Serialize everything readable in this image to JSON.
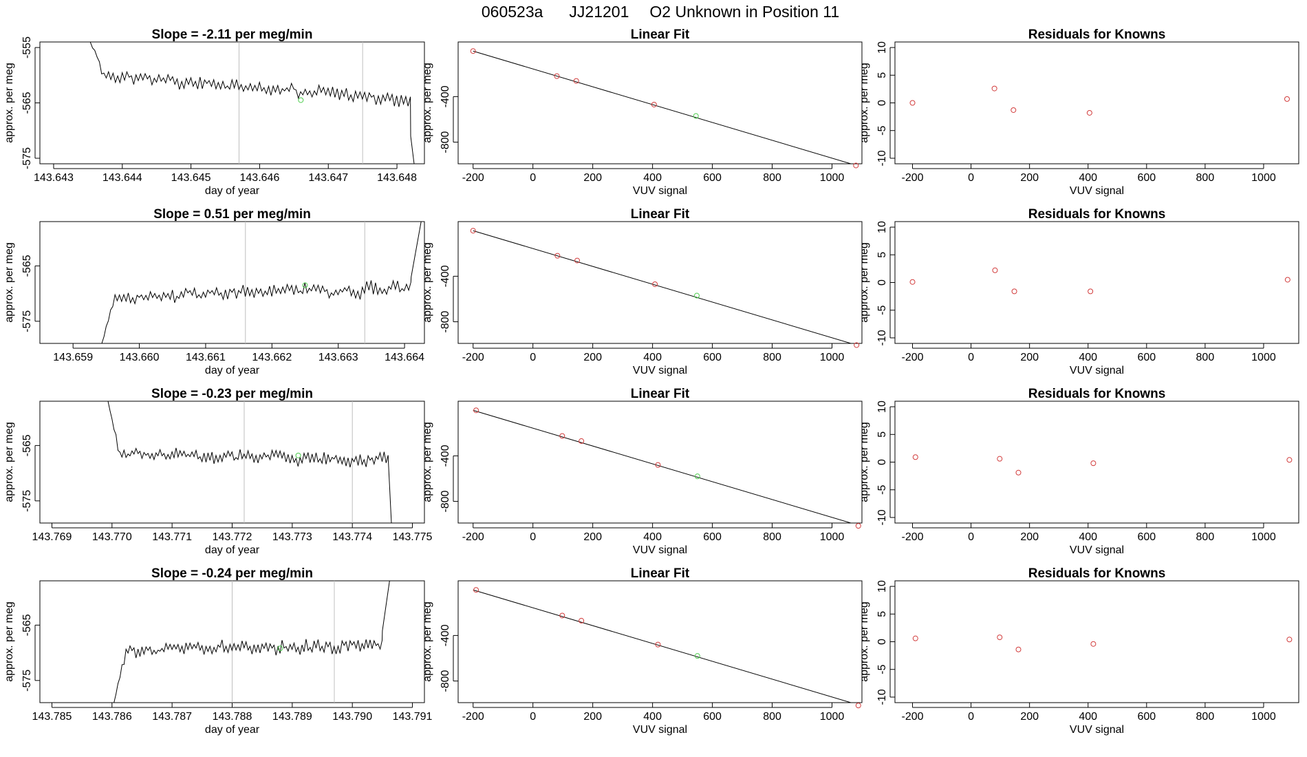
{
  "figure": {
    "run_id": "060523a",
    "tank_id": "JJ21201",
    "description": "O2 Unknown in Position  11"
  },
  "chart_data": [
    {
      "row": 1,
      "timeseries": {
        "type": "line",
        "title": "Slope =  -2.11  per meg/min",
        "xlabel": "day of year",
        "ylabel": "approx. per meg",
        "xlim": [
          143.6428,
          143.6484
        ],
        "ylim": [
          -576,
          -554
        ],
        "xticks": [
          "143.643",
          "143.644",
          "143.645",
          "143.646",
          "143.647",
          "143.648"
        ],
        "yticks": [
          "-555",
          "-565",
          "-575"
        ],
        "vlines": [
          143.6457,
          143.6475
        ],
        "start": [
          143.6435,
          -554
        ],
        "step": 3.33e-05,
        "end": 143.6482,
        "y0": -559.5,
        "slope_per_day": -1.1,
        "noise_amp": 1.8,
        "marker": [
          143.6466,
          -564.5
        ],
        "edge_tail": [
          [
            143.6482,
            -571
          ],
          [
            143.64825,
            -576
          ]
        ],
        "seed": 11
      },
      "fit": {
        "type": "scatter",
        "title": "Linear Fit",
        "xlabel": "VUV signal",
        "ylabel": "approx. per meg",
        "xlim": [
          -250,
          1100
        ],
        "ylim": [
          -990,
          80
        ],
        "xticks": [
          -200,
          0,
          200,
          400,
          600,
          800,
          1000
        ],
        "yticks": [
          -400,
          -800
        ],
        "line": [
          [
            -200,
            0
          ],
          [
            1095,
            -1015
          ]
        ],
        "knowns": [
          [
            -200,
            0
          ],
          [
            80,
            -220
          ],
          [
            145,
            -262
          ],
          [
            405,
            -470
          ],
          [
            1080,
            -1005
          ]
        ],
        "unknown": [
          [
            545,
            -570
          ]
        ]
      },
      "residuals": {
        "type": "scatter",
        "title": "Residuals for Knowns",
        "xlabel": "VUV signal",
        "ylabel": "approx. per meg",
        "xlim": [
          -260,
          1120
        ],
        "ylim": [
          -11,
          11
        ],
        "xticks": [
          -200,
          0,
          200,
          400,
          600,
          800,
          1000
        ],
        "yticks": [
          10,
          5,
          0,
          -5,
          -10
        ],
        "points": [
          [
            -200,
            0.0
          ],
          [
            80,
            2.6
          ],
          [
            145,
            -1.3
          ],
          [
            405,
            -1.8
          ],
          [
            1080,
            0.7
          ]
        ]
      }
    },
    {
      "row": 2,
      "timeseries": {
        "type": "line",
        "title": "Slope =  0.51  per meg/min",
        "xlabel": "day of year",
        "ylabel": "approx. per meg",
        "xlim": [
          143.6585,
          143.6643
        ],
        "ylim": [
          -579,
          -557
        ],
        "xticks": [
          "143.659",
          "143.660",
          "143.661",
          "143.662",
          "143.663",
          "143.664"
        ],
        "yticks": [
          "-565",
          "-575"
        ],
        "vlines": [
          143.6616,
          143.6634
        ],
        "start": [
          143.6594,
          -579
        ],
        "step": 3.33e-05,
        "end": 143.6641,
        "y0": -570.8,
        "slope_per_day": 0.4,
        "noise_amp": 1.8,
        "marker": [
          143.6625,
          -568.5
        ],
        "edge_tail": [
          [
            143.6641,
            -567
          ],
          [
            143.66425,
            -557
          ]
        ],
        "seed": 23
      },
      "fit": {
        "type": "scatter",
        "title": "Linear Fit",
        "xlabel": "VUV signal",
        "ylabel": "approx. per meg",
        "xlim": [
          -250,
          1100
        ],
        "ylim": [
          -990,
          80
        ],
        "xticks": [
          -200,
          0,
          200,
          400,
          600,
          800,
          1000
        ],
        "yticks": [
          -400,
          -800
        ],
        "line": [
          [
            -200,
            0
          ],
          [
            1095,
            -1015
          ]
        ],
        "knowns": [
          [
            -200,
            0
          ],
          [
            82,
            -220
          ],
          [
            148,
            -262
          ],
          [
            408,
            -470
          ],
          [
            1082,
            -1005
          ]
        ],
        "unknown": [
          [
            548,
            -570
          ]
        ]
      },
      "residuals": {
        "type": "scatter",
        "title": "Residuals for Knowns",
        "xlabel": "VUV signal",
        "ylabel": "approx. per meg",
        "xlim": [
          -260,
          1120
        ],
        "ylim": [
          -11,
          11
        ],
        "xticks": [
          -200,
          0,
          200,
          400,
          600,
          800,
          1000
        ],
        "yticks": [
          10,
          5,
          0,
          -5,
          -10
        ],
        "points": [
          [
            -200,
            0.1
          ],
          [
            82,
            2.2
          ],
          [
            148,
            -1.6
          ],
          [
            408,
            -1.6
          ],
          [
            1082,
            0.5
          ]
        ]
      }
    },
    {
      "row": 3,
      "timeseries": {
        "type": "line",
        "title": "Slope =  -0.23  per meg/min",
        "xlabel": "day of year",
        "ylabel": "approx. per meg",
        "xlim": [
          143.7688,
          143.7752
        ],
        "ylim": [
          -579,
          -557
        ],
        "xticks": [
          "143.769",
          "143.770",
          "143.771",
          "143.772",
          "143.773",
          "143.774",
          "143.775"
        ],
        "yticks": [
          "-565",
          "-575"
        ],
        "vlines": [
          143.7722,
          143.774
        ],
        "start": [
          143.7699,
          -557
        ],
        "step": 3.33e-05,
        "end": 143.7746,
        "y0": -566.6,
        "slope_per_day": -0.2,
        "noise_amp": 1.8,
        "marker": [
          143.7731,
          -566.8
        ],
        "edge_tail": [
          [
            143.7746,
            -568
          ],
          [
            143.77465,
            -579
          ]
        ],
        "seed": 37
      },
      "fit": {
        "type": "scatter",
        "title": "Linear Fit",
        "xlabel": "VUV signal",
        "ylabel": "approx. per meg",
        "xlim": [
          -250,
          1100
        ],
        "ylim": [
          -990,
          80
        ],
        "xticks": [
          -200,
          0,
          200,
          400,
          600,
          800,
          1000
        ],
        "yticks": [
          -400,
          -800
        ],
        "line": [
          [
            -200,
            0
          ],
          [
            1095,
            -1015
          ]
        ],
        "knowns": [
          [
            -190,
            0
          ],
          [
            98,
            -225
          ],
          [
            162,
            -270
          ],
          [
            418,
            -480
          ],
          [
            1088,
            -1015
          ]
        ],
        "unknown": [
          [
            550,
            -580
          ]
        ]
      },
      "residuals": {
        "type": "scatter",
        "title": "Residuals for Knowns",
        "xlabel": "VUV signal",
        "ylabel": "approx. per meg",
        "xlim": [
          -260,
          1120
        ],
        "ylim": [
          -11,
          11
        ],
        "xticks": [
          -200,
          0,
          200,
          400,
          600,
          800,
          1000
        ],
        "yticks": [
          10,
          5,
          0,
          -5,
          -10
        ],
        "points": [
          [
            -190,
            0.9
          ],
          [
            98,
            0.6
          ],
          [
            162,
            -1.9
          ],
          [
            418,
            -0.2
          ],
          [
            1088,
            0.4
          ]
        ]
      }
    },
    {
      "row": 4,
      "timeseries": {
        "type": "line",
        "title": "Slope =  -0.24  per meg/min",
        "xlabel": "day of year",
        "ylabel": "approx. per meg",
        "xlim": [
          143.7848,
          143.7912
        ],
        "ylim": [
          -579,
          -557
        ],
        "xticks": [
          "143.785",
          "143.786",
          "143.787",
          "143.788",
          "143.789",
          "143.790",
          "143.791"
        ],
        "yticks": [
          "-565",
          "-575"
        ],
        "vlines": [
          143.788,
          143.7897
        ],
        "start": [
          143.786,
          -579
        ],
        "step": 3.33e-05,
        "end": 143.7905,
        "y0": -569.5,
        "slope_per_day": 0.2,
        "noise_amp": 1.8,
        "marker": [
          143.7888,
          -569.2
        ],
        "edge_tail": [
          [
            143.7905,
            -566
          ],
          [
            143.79062,
            -557
          ]
        ],
        "seed": 53
      },
      "fit": {
        "type": "scatter",
        "title": "Linear Fit",
        "xlabel": "VUV signal",
        "ylabel": "approx. per meg",
        "xlim": [
          -250,
          1100
        ],
        "ylim": [
          -990,
          80
        ],
        "xticks": [
          -200,
          0,
          200,
          400,
          600,
          800,
          1000
        ],
        "yticks": [
          -400,
          -800
        ],
        "line": [
          [
            -200,
            0
          ],
          [
            1095,
            -1015
          ]
        ],
        "knowns": [
          [
            -190,
            0
          ],
          [
            98,
            -225
          ],
          [
            162,
            -270
          ],
          [
            418,
            -480
          ],
          [
            1088,
            -1015
          ]
        ],
        "unknown": [
          [
            550,
            -580
          ]
        ]
      },
      "residuals": {
        "type": "scatter",
        "title": "Residuals for Knowns",
        "xlabel": "VUV signal",
        "ylabel": "approx. per meg",
        "xlim": [
          -260,
          1120
        ],
        "ylim": [
          -11,
          11
        ],
        "xticks": [
          -200,
          0,
          200,
          400,
          600,
          800,
          1000
        ],
        "yticks": [
          10,
          5,
          0,
          -5,
          -10
        ],
        "points": [
          [
            -190,
            0.6
          ],
          [
            98,
            0.8
          ],
          [
            162,
            -1.4
          ],
          [
            418,
            -0.4
          ],
          [
            1088,
            0.4
          ]
        ]
      }
    }
  ],
  "colors": {
    "line": "#000000",
    "known_point": "#d23c3c",
    "unknown_point": "#4ccc4c",
    "marker_lines": "#bebebe",
    "axis": "#000000"
  }
}
